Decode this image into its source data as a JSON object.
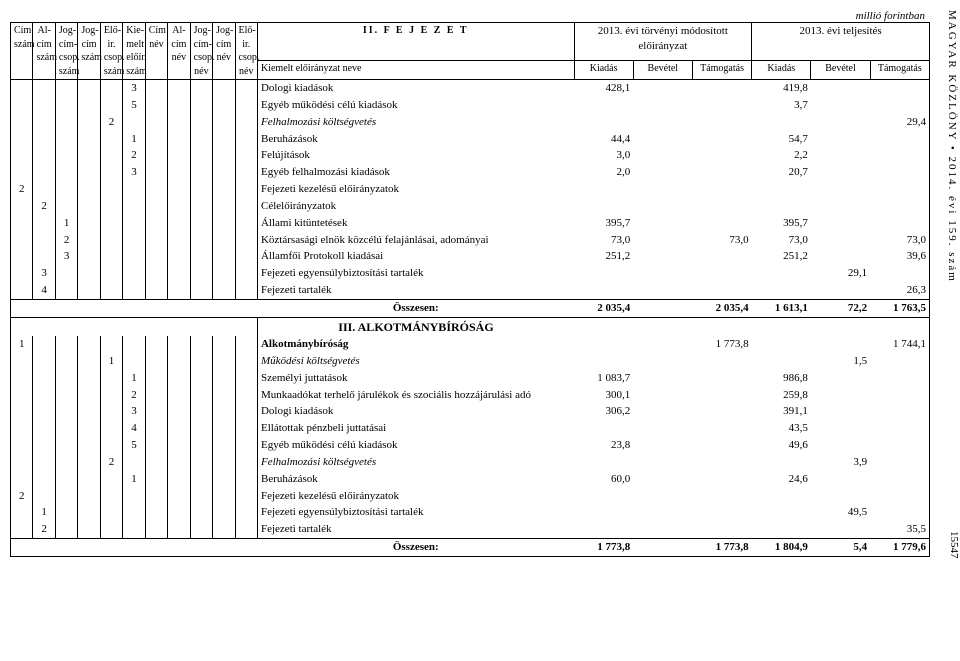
{
  "sideText": "MAGYAR KÖZLÖNY • 2014. évi 159. szám",
  "pageNumber": "15547",
  "unitLabel": "millió forintban",
  "chapterTitle": "II. F E J E Z E T",
  "headerGroups": {
    "mod": "2013. évi törvényi módosított előirányzat",
    "telj": "2013. évi teljesítés"
  },
  "headerCodes": [
    "Cím szám",
    "Al-cím szám",
    "Jog-cím-csop. szám",
    "Jog-cím szám",
    "Elő-ir. csop. szám",
    "Kie-melt előír. szám",
    "Cím név",
    "Al-cím név",
    "Jog-cím-csop. név",
    "Jog-cím név",
    "Elő-ir. csop. név"
  ],
  "headerKiemelt": "Kiemelt előirányzat neve",
  "headerCols": [
    "Kiadás",
    "Bevétel",
    "Támogatás",
    "Kiadás",
    "Bevétel",
    "Támogatás"
  ],
  "rowsA": [
    {
      "codes": [
        "",
        "",
        "",
        "",
        "",
        "3",
        "",
        "",
        "",
        "",
        ""
      ],
      "desc": "Dologi kiadások",
      "style": "",
      "indent": "",
      "vals": [
        "428,1",
        "",
        "",
        "419,8",
        "",
        ""
      ]
    },
    {
      "codes": [
        "",
        "",
        "",
        "",
        "",
        "5",
        "",
        "",
        "",
        "",
        ""
      ],
      "desc": "Egyéb működési célú kiadások",
      "style": "",
      "indent": "",
      "vals": [
        "",
        "",
        "",
        "3,7",
        "",
        ""
      ]
    },
    {
      "codes": [
        "",
        "",
        "",
        "",
        "2",
        "",
        "",
        "",
        "",
        "",
        ""
      ],
      "desc": "Felhalmozási költségvetés",
      "style": "italic",
      "indent": "",
      "vals": [
        "",
        "",
        "",
        "",
        "",
        "29,4"
      ]
    },
    {
      "codes": [
        "",
        "",
        "",
        "",
        "",
        "1",
        "",
        "",
        "",
        "",
        ""
      ],
      "desc": "Beruházások",
      "style": "",
      "indent": "",
      "vals": [
        "44,4",
        "",
        "",
        "54,7",
        "",
        ""
      ]
    },
    {
      "codes": [
        "",
        "",
        "",
        "",
        "",
        "2",
        "",
        "",
        "",
        "",
        ""
      ],
      "desc": "Felújítások",
      "style": "",
      "indent": "",
      "vals": [
        "3,0",
        "",
        "",
        "2,2",
        "",
        ""
      ]
    },
    {
      "codes": [
        "",
        "",
        "",
        "",
        "",
        "3",
        "",
        "",
        "",
        "",
        ""
      ],
      "desc": "Egyéb felhalmozási kiadások",
      "style": "",
      "indent": "",
      "vals": [
        "2,0",
        "",
        "",
        "20,7",
        "",
        ""
      ]
    },
    {
      "codes": [
        "2",
        "",
        "",
        "",
        "",
        "",
        "",
        "",
        "",
        "",
        ""
      ],
      "desc": "Fejezeti kezelésű előirányzatok",
      "style": "",
      "indent": "",
      "vals": [
        "",
        "",
        "",
        "",
        "",
        ""
      ]
    },
    {
      "codes": [
        "",
        "2",
        "",
        "",
        "",
        "",
        "",
        "",
        "",
        "",
        ""
      ],
      "desc": "Célelőirányzatok",
      "style": "",
      "indent": "ind1",
      "vals": [
        "",
        "",
        "",
        "",
        "",
        ""
      ]
    },
    {
      "codes": [
        "",
        "",
        "1",
        "",
        "",
        "",
        "",
        "",
        "",
        "",
        ""
      ],
      "desc": "Állami kitüntetések",
      "style": "",
      "indent": "ind2",
      "vals": [
        "395,7",
        "",
        "",
        "395,7",
        "",
        ""
      ]
    },
    {
      "codes": [
        "",
        "",
        "2",
        "",
        "",
        "",
        "",
        "",
        "",
        "",
        ""
      ],
      "desc": "Köztársasági elnök közcélú felajánlásai, adományai",
      "style": "",
      "indent": "ind2",
      "vals": [
        "73,0",
        "",
        "73,0",
        "73,0",
        "",
        "73,0"
      ]
    },
    {
      "codes": [
        "",
        "",
        "3",
        "",
        "",
        "",
        "",
        "",
        "",
        "",
        ""
      ],
      "desc": "Államfői Protokoll kiadásai",
      "style": "",
      "indent": "ind2",
      "vals": [
        "251,2",
        "",
        "",
        "251,2",
        "",
        "39,6"
      ]
    },
    {
      "codes": [
        "",
        "3",
        "",
        "",
        "",
        "",
        "",
        "",
        "",
        "",
        ""
      ],
      "desc": "Fejezeti egyensúlybiztosítási tartalék",
      "style": "",
      "indent": "ind1",
      "vals": [
        "",
        "",
        "",
        "",
        "29,1",
        ""
      ]
    },
    {
      "codes": [
        "",
        "4",
        "",
        "",
        "",
        "",
        "",
        "",
        "",
        "",
        ""
      ],
      "desc": "Fejezeti tartalék",
      "style": "",
      "indent": "ind1",
      "vals": [
        "",
        "",
        "",
        "",
        "",
        "26,3"
      ]
    }
  ],
  "totalsA": {
    "label": "Összesen:",
    "vals": [
      "2 035,4",
      "",
      "2 035,4",
      "1 613,1",
      "72,2",
      "1 763,5"
    ]
  },
  "sectionB": "III. ALKOTMÁNYBÍRÓSÁG",
  "rowsB": [
    {
      "codes": [
        "1",
        "",
        "",
        "",
        "",
        "",
        "",
        "",
        "",
        "",
        ""
      ],
      "desc": "Alkotmánybíróság",
      "style": "bold",
      "indent": "",
      "vals": [
        "",
        "",
        "1 773,8",
        "",
        "",
        "1 744,1"
      ]
    },
    {
      "codes": [
        "",
        "",
        "",
        "",
        "1",
        "",
        "",
        "",
        "",
        "",
        ""
      ],
      "desc": "Működési költségvetés",
      "style": "italic",
      "indent": "ind1",
      "vals": [
        "",
        "",
        "",
        "",
        "1,5",
        ""
      ]
    },
    {
      "codes": [
        "",
        "",
        "",
        "",
        "",
        "1",
        "",
        "",
        "",
        "",
        ""
      ],
      "desc": "Személyi juttatások",
      "style": "",
      "indent": "ind2",
      "vals": [
        "1 083,7",
        "",
        "",
        "986,8",
        "",
        ""
      ]
    },
    {
      "codes": [
        "",
        "",
        "",
        "",
        "",
        "2",
        "",
        "",
        "",
        "",
        ""
      ],
      "desc": "Munkaadókat terhelő járulékok és szociális hozzájárulási adó",
      "style": "",
      "indent": "ind2",
      "vals": [
        "300,1",
        "",
        "",
        "259,8",
        "",
        ""
      ]
    },
    {
      "codes": [
        "",
        "",
        "",
        "",
        "",
        "3",
        "",
        "",
        "",
        "",
        ""
      ],
      "desc": "Dologi kiadások",
      "style": "",
      "indent": "ind2",
      "vals": [
        "306,2",
        "",
        "",
        "391,1",
        "",
        ""
      ]
    },
    {
      "codes": [
        "",
        "",
        "",
        "",
        "",
        "4",
        "",
        "",
        "",
        "",
        ""
      ],
      "desc": "Ellátottak pénzbeli juttatásai",
      "style": "",
      "indent": "ind2",
      "vals": [
        "",
        "",
        "",
        "43,5",
        "",
        ""
      ]
    },
    {
      "codes": [
        "",
        "",
        "",
        "",
        "",
        "5",
        "",
        "",
        "",
        "",
        ""
      ],
      "desc": "Egyéb működési célú kiadások",
      "style": "",
      "indent": "ind2",
      "vals": [
        "23,8",
        "",
        "",
        "49,6",
        "",
        ""
      ]
    },
    {
      "codes": [
        "",
        "",
        "",
        "",
        "2",
        "",
        "",
        "",
        "",
        "",
        ""
      ],
      "desc": "Felhalmozási költségvetés",
      "style": "italic",
      "indent": "ind1",
      "vals": [
        "",
        "",
        "",
        "",
        "3,9",
        ""
      ]
    },
    {
      "codes": [
        "",
        "",
        "",
        "",
        "",
        "1",
        "",
        "",
        "",
        "",
        ""
      ],
      "desc": "Beruházások",
      "style": "",
      "indent": "ind2",
      "vals": [
        "60,0",
        "",
        "",
        "24,6",
        "",
        ""
      ]
    },
    {
      "codes": [
        "2",
        "",
        "",
        "",
        "",
        "",
        "",
        "",
        "",
        "",
        ""
      ],
      "desc": "Fejezeti kezelésű előirányzatok",
      "style": "",
      "indent": "",
      "vals": [
        "",
        "",
        "",
        "",
        "",
        ""
      ]
    },
    {
      "codes": [
        "",
        "1",
        "",
        "",
        "",
        "",
        "",
        "",
        "",
        "",
        ""
      ],
      "desc": "Fejezeti egyensúlybiztosítási tartalék",
      "style": "",
      "indent": "ind1",
      "vals": [
        "",
        "",
        "",
        "",
        "49,5",
        ""
      ]
    },
    {
      "codes": [
        "",
        "2",
        "",
        "",
        "",
        "",
        "",
        "",
        "",
        "",
        ""
      ],
      "desc": "Fejezeti tartalék",
      "style": "",
      "indent": "ind1",
      "vals": [
        "",
        "",
        "",
        "",
        "",
        "35,5"
      ]
    }
  ],
  "totalsB": {
    "label": "Összesen:",
    "vals": [
      "1 773,8",
      "",
      "1 773,8",
      "1 804,9",
      "5,4",
      "1 779,6"
    ]
  }
}
